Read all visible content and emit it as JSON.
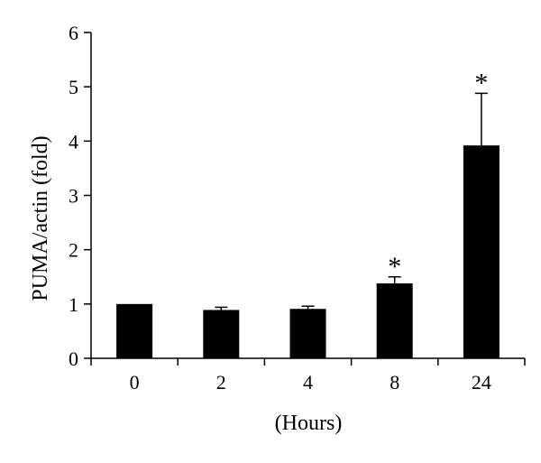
{
  "chart_data": {
    "type": "bar",
    "title": "",
    "xlabel": "(Hours)",
    "ylabel": "PUMA/actin (fold)",
    "categories": [
      "0",
      "2",
      "4",
      "8",
      "24"
    ],
    "values": [
      1.0,
      0.89,
      0.91,
      1.38,
      3.92
    ],
    "error_upper": [
      0.0,
      0.05,
      0.05,
      0.12,
      0.96
    ],
    "significance": [
      "",
      "",
      "",
      "*",
      "*"
    ],
    "ylim": [
      0,
      6
    ],
    "yticks": [
      "0",
      "1",
      "2",
      "3",
      "4",
      "5",
      "6"
    ],
    "grid": false,
    "legend": "none",
    "colors": {
      "bar": "#000000",
      "axis": "#000000",
      "background": "#ffffff"
    }
  }
}
